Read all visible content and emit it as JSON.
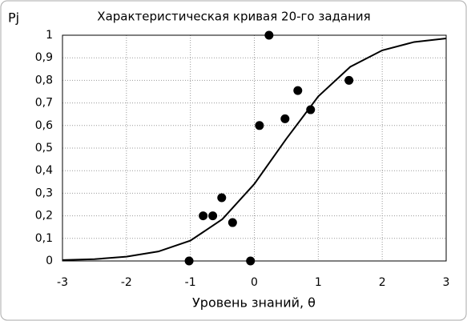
{
  "chart_data": {
    "type": "scatter",
    "title": "Характеристическая кривая 20-го задания",
    "ylabel": "Pj",
    "xlabel": "Уровень знаний, θ",
    "series": [
      {
        "type": "scatter",
        "color": "#000000",
        "x": [
          -1.02,
          -0.8,
          -0.65,
          -0.51,
          -0.34,
          -0.06,
          0.08,
          0.23,
          0.48,
          0.68,
          0.88,
          1.48
        ],
        "values": [
          0,
          0.2,
          0.2,
          0.28,
          0.17,
          0,
          0.6,
          1,
          0.63,
          0.755,
          0.67,
          0.8
        ]
      },
      {
        "type": "line",
        "color": "#000000",
        "x": [
          -3,
          -2.5,
          -2,
          -1.5,
          -1,
          -0.5,
          0,
          0.5,
          1,
          1.5,
          2,
          2.5,
          3
        ],
        "values": [
          0.004,
          0.008,
          0.019,
          0.042,
          0.09,
          0.185,
          0.341,
          0.541,
          0.729,
          0.86,
          0.933,
          0.97,
          0.986
        ]
      }
    ],
    "xlim": [
      -3,
      3
    ],
    "xticks": [
      -3,
      -2,
      -1,
      0,
      1,
      2,
      3
    ],
    "ylim": [
      0,
      1
    ],
    "yticks": [
      0,
      {
        "value": 0.1,
        "label": "0,1"
      },
      {
        "value": 0.2,
        "label": "0,2"
      },
      {
        "value": 0.3,
        "label": "0,3"
      },
      {
        "value": 0.4,
        "label": "0,4"
      },
      {
        "value": 0.5,
        "label": "0,5"
      },
      {
        "value": 0.6,
        "label": "0,6"
      },
      {
        "value": 0.7,
        "label": "0,7"
      },
      {
        "value": 0.8,
        "label": "0,8"
      },
      {
        "value": 0.9,
        "label": "0,9"
      },
      1
    ],
    "grid": true
  }
}
